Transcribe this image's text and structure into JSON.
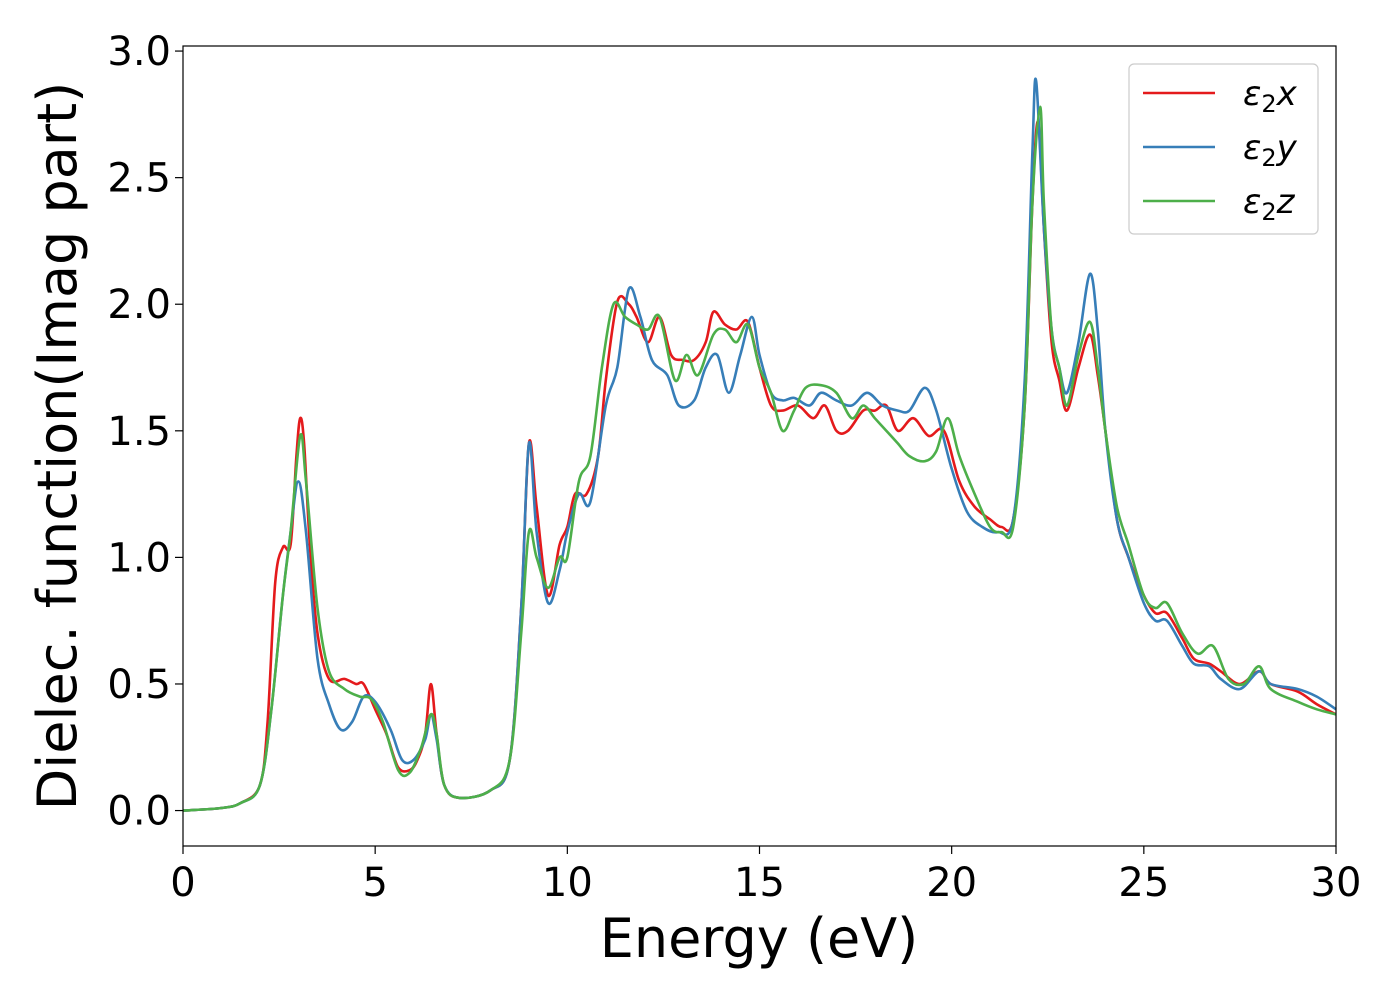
{
  "chart_data": {
    "type": "line",
    "title": "",
    "xlabel": "Energy (eV)",
    "ylabel": "Dielec. function(Imag part)",
    "xlim": [
      0,
      30
    ],
    "ylim": [
      -0.14,
      3.02
    ],
    "xticks": [
      0,
      5,
      10,
      15,
      20,
      25,
      30
    ],
    "yticks": [
      0.0,
      0.5,
      1.0,
      1.5,
      2.0,
      2.5,
      3.0
    ],
    "xtick_labels": [
      "0",
      "5",
      "10",
      "15",
      "20",
      "25",
      "30"
    ],
    "ytick_labels": [
      "0.0",
      "0.5",
      "1.0",
      "1.5",
      "2.0",
      "2.5",
      "3.0"
    ],
    "grid": false,
    "legend_position": "top-right",
    "series": [
      {
        "name": "ε₂x",
        "legend_base": "ε",
        "legend_sub": "2",
        "legend_suffix": "x",
        "color": "#e41a1c",
        "points": [
          [
            0,
            0
          ],
          [
            1,
            0.01
          ],
          [
            1.5,
            0.03
          ],
          [
            2,
            0.1
          ],
          [
            2.2,
            0.35
          ],
          [
            2.4,
            0.9
          ],
          [
            2.6,
            1.04
          ],
          [
            2.8,
            1.05
          ],
          [
            2.95,
            1.4
          ],
          [
            3.05,
            1.55
          ],
          [
            3.15,
            1.45
          ],
          [
            3.3,
            1.05
          ],
          [
            3.5,
            0.7
          ],
          [
            3.8,
            0.52
          ],
          [
            4.2,
            0.52
          ],
          [
            4.5,
            0.5
          ],
          [
            4.7,
            0.5
          ],
          [
            5.0,
            0.4
          ],
          [
            5.3,
            0.3
          ],
          [
            5.6,
            0.17
          ],
          [
            5.9,
            0.16
          ],
          [
            6.1,
            0.2
          ],
          [
            6.3,
            0.3
          ],
          [
            6.45,
            0.5
          ],
          [
            6.6,
            0.3
          ],
          [
            6.8,
            0.1
          ],
          [
            7.2,
            0.05
          ],
          [
            8,
            0.08
          ],
          [
            8.5,
            0.2
          ],
          [
            8.8,
            0.8
          ],
          [
            9.0,
            1.45
          ],
          [
            9.2,
            1.2
          ],
          [
            9.5,
            0.85
          ],
          [
            9.8,
            1.05
          ],
          [
            10,
            1.12
          ],
          [
            10.2,
            1.25
          ],
          [
            10.5,
            1.25
          ],
          [
            10.8,
            1.4
          ],
          [
            11.0,
            1.7
          ],
          [
            11.3,
            2.01
          ],
          [
            11.6,
            2.0
          ],
          [
            11.8,
            1.95
          ],
          [
            12.1,
            1.85
          ],
          [
            12.4,
            1.95
          ],
          [
            12.7,
            1.8
          ],
          [
            13.0,
            1.78
          ],
          [
            13.3,
            1.78
          ],
          [
            13.6,
            1.85
          ],
          [
            13.8,
            1.97
          ],
          [
            14.1,
            1.92
          ],
          [
            14.4,
            1.9
          ],
          [
            14.7,
            1.93
          ],
          [
            15.0,
            1.75
          ],
          [
            15.3,
            1.6
          ],
          [
            15.6,
            1.58
          ],
          [
            16.0,
            1.6
          ],
          [
            16.4,
            1.55
          ],
          [
            16.7,
            1.6
          ],
          [
            17.0,
            1.5
          ],
          [
            17.3,
            1.5
          ],
          [
            17.7,
            1.58
          ],
          [
            18.0,
            1.58
          ],
          [
            18.3,
            1.6
          ],
          [
            18.6,
            1.5
          ],
          [
            19.0,
            1.55
          ],
          [
            19.4,
            1.48
          ],
          [
            19.8,
            1.5
          ],
          [
            20.2,
            1.3
          ],
          [
            20.6,
            1.2
          ],
          [
            21.0,
            1.15
          ],
          [
            21.3,
            1.12
          ],
          [
            21.6,
            1.15
          ],
          [
            21.9,
            1.6
          ],
          [
            22.1,
            2.4
          ],
          [
            22.25,
            2.72
          ],
          [
            22.4,
            2.3
          ],
          [
            22.6,
            1.85
          ],
          [
            22.8,
            1.7
          ],
          [
            23.0,
            1.58
          ],
          [
            23.3,
            1.75
          ],
          [
            23.6,
            1.88
          ],
          [
            23.8,
            1.72
          ],
          [
            24.0,
            1.5
          ],
          [
            24.3,
            1.15
          ],
          [
            24.6,
            1.0
          ],
          [
            25.0,
            0.85
          ],
          [
            25.3,
            0.78
          ],
          [
            25.6,
            0.78
          ],
          [
            26.0,
            0.68
          ],
          [
            26.3,
            0.6
          ],
          [
            26.7,
            0.58
          ],
          [
            27.0,
            0.55
          ],
          [
            27.5,
            0.5
          ],
          [
            28.0,
            0.55
          ],
          [
            28.3,
            0.5
          ],
          [
            29.0,
            0.47
          ],
          [
            29.5,
            0.42
          ],
          [
            30,
            0.38
          ]
        ]
      },
      {
        "name": "ε₂y",
        "legend_base": "ε",
        "legend_sub": "2",
        "legend_suffix": "y",
        "color": "#377eb8",
        "points": [
          [
            0,
            0
          ],
          [
            1,
            0.01
          ],
          [
            1.5,
            0.03
          ],
          [
            2,
            0.1
          ],
          [
            2.3,
            0.4
          ],
          [
            2.6,
            0.85
          ],
          [
            2.8,
            1.1
          ],
          [
            3.0,
            1.3
          ],
          [
            3.2,
            1.1
          ],
          [
            3.5,
            0.6
          ],
          [
            3.8,
            0.42
          ],
          [
            4.1,
            0.32
          ],
          [
            4.4,
            0.35
          ],
          [
            4.7,
            0.45
          ],
          [
            5.0,
            0.43
          ],
          [
            5.4,
            0.32
          ],
          [
            5.7,
            0.2
          ],
          [
            6.0,
            0.2
          ],
          [
            6.3,
            0.28
          ],
          [
            6.45,
            0.38
          ],
          [
            6.6,
            0.28
          ],
          [
            6.8,
            0.1
          ],
          [
            7.2,
            0.05
          ],
          [
            8,
            0.08
          ],
          [
            8.5,
            0.2
          ],
          [
            8.8,
            0.8
          ],
          [
            9.0,
            1.45
          ],
          [
            9.2,
            1.1
          ],
          [
            9.5,
            0.82
          ],
          [
            9.8,
            0.95
          ],
          [
            10,
            1.1
          ],
          [
            10.3,
            1.25
          ],
          [
            10.6,
            1.22
          ],
          [
            11.0,
            1.6
          ],
          [
            11.3,
            1.75
          ],
          [
            11.6,
            2.06
          ],
          [
            11.9,
            1.95
          ],
          [
            12.2,
            1.78
          ],
          [
            12.6,
            1.72
          ],
          [
            12.9,
            1.6
          ],
          [
            13.3,
            1.62
          ],
          [
            13.6,
            1.75
          ],
          [
            13.9,
            1.8
          ],
          [
            14.2,
            1.65
          ],
          [
            14.5,
            1.8
          ],
          [
            14.8,
            1.95
          ],
          [
            15.0,
            1.8
          ],
          [
            15.3,
            1.65
          ],
          [
            15.6,
            1.62
          ],
          [
            15.9,
            1.63
          ],
          [
            16.3,
            1.6
          ],
          [
            16.6,
            1.65
          ],
          [
            17.0,
            1.62
          ],
          [
            17.4,
            1.6
          ],
          [
            17.8,
            1.65
          ],
          [
            18.2,
            1.6
          ],
          [
            18.6,
            1.58
          ],
          [
            18.9,
            1.58
          ],
          [
            19.3,
            1.67
          ],
          [
            19.6,
            1.58
          ],
          [
            20.0,
            1.35
          ],
          [
            20.4,
            1.18
          ],
          [
            20.8,
            1.12
          ],
          [
            21.2,
            1.1
          ],
          [
            21.6,
            1.15
          ],
          [
            21.9,
            1.7
          ],
          [
            22.1,
            2.6
          ],
          [
            22.2,
            2.88
          ],
          [
            22.4,
            2.3
          ],
          [
            22.6,
            1.9
          ],
          [
            22.8,
            1.75
          ],
          [
            23.0,
            1.65
          ],
          [
            23.3,
            1.85
          ],
          [
            23.6,
            2.12
          ],
          [
            23.8,
            1.9
          ],
          [
            24.0,
            1.5
          ],
          [
            24.3,
            1.15
          ],
          [
            24.6,
            1.0
          ],
          [
            25.0,
            0.82
          ],
          [
            25.3,
            0.75
          ],
          [
            25.6,
            0.75
          ],
          [
            26.0,
            0.65
          ],
          [
            26.3,
            0.58
          ],
          [
            26.7,
            0.57
          ],
          [
            27.0,
            0.52
          ],
          [
            27.5,
            0.48
          ],
          [
            28.0,
            0.55
          ],
          [
            28.3,
            0.5
          ],
          [
            29.0,
            0.48
          ],
          [
            29.5,
            0.45
          ],
          [
            30,
            0.4
          ]
        ]
      },
      {
        "name": "ε₂z",
        "legend_base": "ε",
        "legend_sub": "2",
        "legend_suffix": "z",
        "color": "#4daf4a",
        "points": [
          [
            0,
            0
          ],
          [
            1,
            0.01
          ],
          [
            1.5,
            0.03
          ],
          [
            2,
            0.1
          ],
          [
            2.3,
            0.4
          ],
          [
            2.6,
            0.85
          ],
          [
            2.8,
            1.1
          ],
          [
            3.05,
            1.48
          ],
          [
            3.2,
            1.3
          ],
          [
            3.5,
            0.8
          ],
          [
            3.8,
            0.55
          ],
          [
            4.2,
            0.48
          ],
          [
            4.6,
            0.45
          ],
          [
            4.9,
            0.44
          ],
          [
            5.2,
            0.35
          ],
          [
            5.6,
            0.16
          ],
          [
            5.9,
            0.15
          ],
          [
            6.2,
            0.25
          ],
          [
            6.45,
            0.38
          ],
          [
            6.6,
            0.3
          ],
          [
            6.8,
            0.1
          ],
          [
            7.2,
            0.05
          ],
          [
            8,
            0.08
          ],
          [
            8.5,
            0.2
          ],
          [
            8.8,
            0.7
          ],
          [
            9.0,
            1.1
          ],
          [
            9.2,
            1.0
          ],
          [
            9.5,
            0.88
          ],
          [
            9.8,
            1.0
          ],
          [
            10,
            1.0
          ],
          [
            10.3,
            1.3
          ],
          [
            10.6,
            1.4
          ],
          [
            10.9,
            1.75
          ],
          [
            11.2,
            2.0
          ],
          [
            11.5,
            1.95
          ],
          [
            11.8,
            1.92
          ],
          [
            12.1,
            1.9
          ],
          [
            12.4,
            1.95
          ],
          [
            12.8,
            1.7
          ],
          [
            13.1,
            1.8
          ],
          [
            13.4,
            1.72
          ],
          [
            13.8,
            1.88
          ],
          [
            14.1,
            1.9
          ],
          [
            14.4,
            1.85
          ],
          [
            14.7,
            1.92
          ],
          [
            15.0,
            1.75
          ],
          [
            15.3,
            1.65
          ],
          [
            15.6,
            1.5
          ],
          [
            15.9,
            1.58
          ],
          [
            16.2,
            1.67
          ],
          [
            16.6,
            1.68
          ],
          [
            17.0,
            1.65
          ],
          [
            17.4,
            1.55
          ],
          [
            17.7,
            1.6
          ],
          [
            18.0,
            1.55
          ],
          [
            18.3,
            1.5
          ],
          [
            18.6,
            1.45
          ],
          [
            18.9,
            1.4
          ],
          [
            19.3,
            1.38
          ],
          [
            19.6,
            1.42
          ],
          [
            19.9,
            1.55
          ],
          [
            20.2,
            1.4
          ],
          [
            20.6,
            1.25
          ],
          [
            21.0,
            1.12
          ],
          [
            21.3,
            1.1
          ],
          [
            21.6,
            1.12
          ],
          [
            21.9,
            1.6
          ],
          [
            22.1,
            2.4
          ],
          [
            22.3,
            2.78
          ],
          [
            22.4,
            2.4
          ],
          [
            22.6,
            1.9
          ],
          [
            22.8,
            1.75
          ],
          [
            23.0,
            1.6
          ],
          [
            23.3,
            1.8
          ],
          [
            23.6,
            1.93
          ],
          [
            23.8,
            1.75
          ],
          [
            24.0,
            1.5
          ],
          [
            24.3,
            1.2
          ],
          [
            24.6,
            1.05
          ],
          [
            25.0,
            0.85
          ],
          [
            25.3,
            0.8
          ],
          [
            25.6,
            0.82
          ],
          [
            26.0,
            0.7
          ],
          [
            26.4,
            0.62
          ],
          [
            26.8,
            0.65
          ],
          [
            27.2,
            0.52
          ],
          [
            27.6,
            0.5
          ],
          [
            28.0,
            0.57
          ],
          [
            28.3,
            0.48
          ],
          [
            29.0,
            0.43
          ],
          [
            29.5,
            0.4
          ],
          [
            30,
            0.38
          ]
        ]
      }
    ]
  }
}
